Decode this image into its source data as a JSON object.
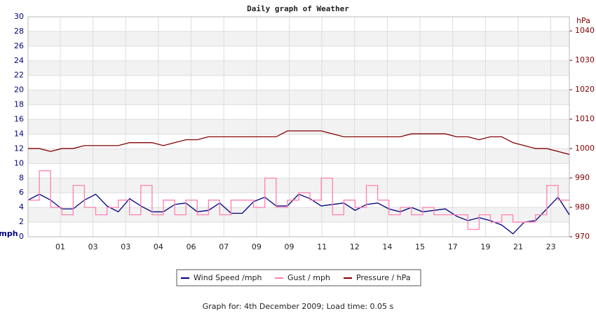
{
  "chart_data": {
    "type": "line",
    "title": "Daily graph of Weather",
    "ylabel": "mph",
    "y2label": "hPa",
    "footer": "Graph for: 4th December 2009; Load time: 0.05 s",
    "x": [
      0,
      1,
      2,
      3,
      4,
      5,
      6,
      7,
      8,
      9,
      10,
      11,
      12,
      13,
      14,
      15,
      16,
      17,
      18,
      19,
      20,
      21,
      22,
      23,
      24,
      25,
      26,
      27,
      28,
      29,
      30,
      31,
      32,
      33,
      34,
      35,
      36,
      37,
      38,
      39,
      40,
      41,
      42,
      43,
      44,
      45,
      46,
      47,
      48
    ],
    "xlim": [
      0,
      48
    ],
    "xticks": [
      {
        "value": 2.86,
        "label": "01"
      },
      {
        "value": 5.76,
        "label": "03"
      },
      {
        "value": 8.66,
        "label": "03"
      },
      {
        "value": 11.56,
        "label": "04"
      },
      {
        "value": 14.46,
        "label": "06"
      },
      {
        "value": 17.36,
        "label": "07"
      },
      {
        "value": 20.26,
        "label": "09"
      },
      {
        "value": 23.16,
        "label": "09"
      },
      {
        "value": 26.06,
        "label": "11"
      },
      {
        "value": 28.96,
        "label": "12"
      },
      {
        "value": 31.86,
        "label": "14"
      },
      {
        "value": 34.76,
        "label": "15"
      },
      {
        "value": 37.66,
        "label": "17"
      },
      {
        "value": 40.56,
        "label": "19"
      },
      {
        "value": 43.46,
        "label": "21"
      },
      {
        "value": 46.36,
        "label": "23"
      }
    ],
    "ylim": [
      0,
      30
    ],
    "yticks": [
      0,
      2,
      4,
      6,
      8,
      10,
      12,
      14,
      16,
      18,
      20,
      22,
      24,
      26,
      28,
      30
    ],
    "y2lim": [
      970,
      1044.8
    ],
    "y2ticks": [
      970,
      980,
      990,
      1000,
      1010,
      1020,
      1030,
      1040
    ],
    "grid": true,
    "series": [
      {
        "name": "Wind Speed /mph",
        "color": "#000080",
        "values": [
          5,
          5.8,
          5,
          3.8,
          3.8,
          5,
          5.8,
          4.2,
          3.4,
          5.2,
          4.2,
          3.4,
          3.4,
          4.4,
          4.6,
          3.4,
          3.6,
          4.6,
          3.2,
          3.2,
          4.8,
          5.4,
          4.2,
          4.2,
          5.8,
          5.2,
          4.2,
          4.4,
          4.6,
          3.6,
          4.4,
          4.6,
          3.8,
          3.4,
          4,
          3.4,
          3.6,
          3.8,
          2.8,
          2.2,
          2.6,
          2.2,
          1.6,
          0.4,
          2,
          2.2,
          3.8,
          5.4,
          3
        ]
      },
      {
        "name": "Gust / mph",
        "color": "#ff80b0",
        "step": true,
        "values": [
          5,
          9,
          4,
          3,
          7,
          4,
          3,
          4,
          5,
          3,
          7,
          3,
          5,
          3,
          5,
          3,
          5,
          3,
          5,
          5,
          4,
          8,
          4,
          5,
          6,
          5,
          8,
          3,
          5,
          4,
          7,
          5,
          3,
          4,
          3,
          4,
          3,
          3,
          3,
          1,
          3,
          2,
          3,
          2,
          2,
          3,
          7,
          5,
          5
        ]
      },
      {
        "name": "Pressure / hPa",
        "color": "#800000",
        "axis": "y2",
        "values": [
          1000,
          1000,
          999,
          1000,
          1000,
          1001,
          1001,
          1001,
          1001,
          1002,
          1002,
          1002,
          1001,
          1002,
          1003,
          1003,
          1004,
          1004,
          1004,
          1004,
          1004,
          1004,
          1004,
          1006,
          1006,
          1006,
          1006,
          1005,
          1004,
          1004,
          1004,
          1004,
          1004,
          1004,
          1005,
          1005,
          1005,
          1005,
          1004,
          1004,
          1003,
          1004,
          1004,
          1002,
          1001,
          1000,
          1000,
          999,
          998
        ]
      }
    ]
  }
}
